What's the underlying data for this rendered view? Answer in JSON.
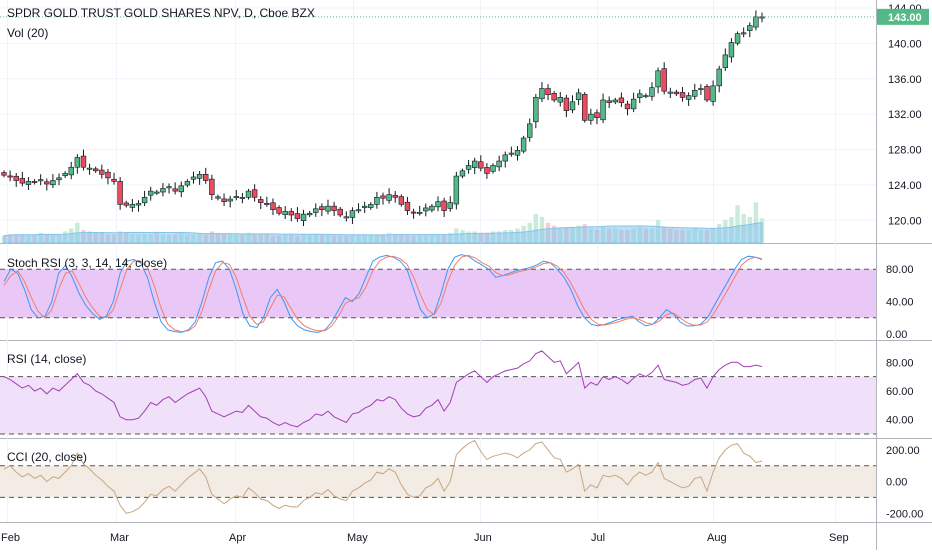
{
  "header": {
    "symbol_title": "SPDR GOLD TRUST GOLD SHARES NPV, D, Cboe BZX",
    "volume_label": "Vol (20)"
  },
  "colors": {
    "up": "#53b987",
    "down": "#eb4d5c",
    "vol_ma": "#85c4ee",
    "stoch_k": "#3e97f2",
    "stoch_d": "#f07f6b",
    "stoch_band": "#e9c7f7",
    "rsi_line": "#a03fb3",
    "rsi_band": "#f1e0f9",
    "cci_line": "#c8a57f",
    "cci_band": "#f3ece4"
  },
  "chart_data": [
    {
      "type": "candlestick",
      "title": "SPDR GOLD TRUST GOLD SHARES NPV, D, Cboe BZX",
      "ylim": [
        118,
        144
      ],
      "yticks": [
        "120.00",
        "124.00",
        "128.00",
        "132.00",
        "136.00",
        "140.00",
        "144.00"
      ],
      "last_price": "143.00",
      "x_labels": [
        "Feb",
        "Mar",
        "Apr",
        "May",
        "Jun",
        "Jul",
        "Aug",
        "Sep"
      ],
      "closes": [
        125.1,
        124.9,
        124.5,
        124.2,
        124.4,
        124.3,
        124.6,
        124.1,
        124.5,
        124.8,
        125.3,
        126.0,
        127.1,
        126.0,
        125.9,
        125.6,
        125.2,
        124.8,
        124.4,
        121.8,
        121.7,
        121.8,
        121.9,
        122.6,
        123.3,
        123.2,
        123.6,
        123.8,
        123.3,
        123.9,
        124.4,
        124.9,
        125.2,
        124.5,
        122.9,
        122.5,
        122.1,
        122.4,
        122.7,
        122.6,
        123.3,
        122.6,
        122.0,
        121.9,
        121.2,
        120.8,
        121.0,
        120.6,
        120.2,
        120.7,
        120.8,
        121.3,
        121.2,
        121.6,
        121.1,
        120.6,
        120.4,
        121.1,
        121.2,
        121.6,
        121.8,
        122.6,
        122.5,
        122.9,
        122.6,
        121.8,
        121.1,
        120.9,
        120.9,
        121.4,
        121.6,
        122.1,
        121.1,
        122.0,
        125.0,
        125.6,
        126.2,
        126.7,
        125.9,
        125.3,
        126.2,
        126.7,
        127.4,
        127.6,
        127.9,
        129.3,
        130.9,
        133.9,
        134.9,
        134.2,
        133.6,
        133.9,
        132.4,
        133.4,
        134.4,
        131.3,
        132.0,
        131.6,
        133.6,
        133.3,
        133.6,
        133.3,
        132.6,
        133.7,
        134.3,
        134.1,
        135.0,
        136.9,
        134.6,
        134.5,
        134.3,
        133.9,
        134.1,
        134.7,
        134.9,
        133.6,
        135.2,
        137.1,
        138.7,
        140.1,
        141.1,
        141.2,
        142.0,
        143.0,
        143.0
      ],
      "vol_ma_note": "",
      "volume_rel": [
        0.25,
        0.3,
        0.3,
        0.3,
        0.28,
        0.3,
        0.35,
        0.3,
        0.3,
        0.3,
        0.4,
        0.5,
        0.7,
        0.45,
        0.4,
        0.35,
        0.35,
        0.3,
        0.3,
        0.4,
        0.35,
        0.3,
        0.3,
        0.3,
        0.3,
        0.35,
        0.3,
        0.28,
        0.3,
        0.35,
        0.3,
        0.3,
        0.35,
        0.3,
        0.4,
        0.35,
        0.3,
        0.3,
        0.28,
        0.3,
        0.35,
        0.3,
        0.3,
        0.3,
        0.25,
        0.25,
        0.3,
        0.28,
        0.25,
        0.3,
        0.3,
        0.3,
        0.3,
        0.28,
        0.25,
        0.25,
        0.25,
        0.3,
        0.28,
        0.3,
        0.3,
        0.3,
        0.3,
        0.35,
        0.3,
        0.3,
        0.28,
        0.25,
        0.3,
        0.28,
        0.3,
        0.3,
        0.3,
        0.35,
        0.5,
        0.45,
        0.4,
        0.4,
        0.35,
        0.35,
        0.4,
        0.4,
        0.45,
        0.45,
        0.5,
        0.6,
        0.7,
        1.0,
        0.9,
        0.7,
        0.6,
        0.55,
        0.55,
        0.55,
        0.6,
        0.65,
        0.5,
        0.45,
        0.55,
        0.5,
        0.5,
        0.45,
        0.45,
        0.5,
        0.55,
        0.5,
        0.5,
        0.8,
        0.55,
        0.5,
        0.45,
        0.45,
        0.45,
        0.5,
        0.45,
        0.45,
        0.5,
        0.65,
        0.8,
        0.9,
        1.3,
        1.0,
        0.9,
        1.4,
        0.85
      ]
    },
    {
      "type": "line",
      "title": "Stoch RSI (3, 3, 14, 14, close)",
      "ylim": [
        0,
        100
      ],
      "yticks": [
        "0.00",
        "40.00",
        "80.00"
      ],
      "bands": [
        20,
        80
      ],
      "series": [
        {
          "values": [
            65,
            80,
            75,
            55,
            30,
            20,
            22,
            40,
            75,
            85,
            70,
            50,
            35,
            25,
            18,
            22,
            40,
            75,
            90,
            92,
            88,
            70,
            40,
            15,
            5,
            3,
            2,
            5,
            15,
            40,
            70,
            88,
            90,
            80,
            55,
            25,
            10,
            8,
            20,
            45,
            55,
            40,
            20,
            10,
            5,
            3,
            2,
            5,
            15,
            30,
            45,
            40,
            50,
            70,
            90,
            95,
            97,
            95,
            90,
            80,
            55,
            30,
            20,
            25,
            50,
            80,
            95,
            98,
            96,
            90,
            85,
            80,
            70,
            72,
            75,
            78,
            80,
            82,
            85,
            90,
            88,
            80,
            70,
            55,
            35,
            20,
            12,
            10,
            12,
            15,
            18,
            20,
            22,
            15,
            10,
            12,
            20,
            30,
            25,
            15,
            10,
            10,
            12,
            20,
            35,
            50,
            65,
            80,
            92,
            96,
            95,
            92
          ]
        },
        {
          "values": [
            60,
            72,
            78,
            65,
            45,
            28,
            20,
            30,
            55,
            75,
            78,
            62,
            45,
            32,
            22,
            20,
            30,
            55,
            80,
            90,
            90,
            82,
            60,
            32,
            12,
            5,
            3,
            4,
            10,
            28,
            55,
            78,
            88,
            86,
            70,
            45,
            22,
            12,
            15,
            32,
            48,
            46,
            32,
            18,
            10,
            6,
            4,
            4,
            10,
            22,
            38,
            42,
            45,
            58,
            78,
            90,
            95,
            96,
            93,
            86,
            70,
            48,
            30,
            24,
            38,
            65,
            85,
            95,
            97,
            94,
            88,
            84,
            76,
            72,
            73,
            76,
            78,
            80,
            83,
            87,
            88,
            84,
            76,
            63,
            47,
            30,
            18,
            12,
            11,
            13,
            15,
            18,
            20,
            18,
            14,
            12,
            16,
            24,
            26,
            20,
            14,
            11,
            11,
            15,
            26,
            40,
            55,
            70,
            85,
            92,
            95,
            93
          ]
        }
      ]
    },
    {
      "type": "line",
      "title": "RSI (14, close)",
      "ylim": [
        30,
        90
      ],
      "yticks": [
        "40.00",
        "60.00",
        "80.00"
      ],
      "bands": [
        30,
        70
      ],
      "series": [
        {
          "values": [
            70,
            68,
            65,
            62,
            64,
            60,
            62,
            58,
            62,
            60,
            64,
            68,
            72,
            66,
            64,
            60,
            58,
            55,
            52,
            42,
            40,
            40,
            41,
            46,
            52,
            50,
            54,
            56,
            52,
            55,
            58,
            60,
            62,
            56,
            46,
            44,
            42,
            44,
            46,
            45,
            50,
            46,
            42,
            41,
            38,
            36,
            38,
            36,
            35,
            38,
            40,
            44,
            43,
            46,
            42,
            40,
            38,
            44,
            45,
            48,
            50,
            54,
            53,
            56,
            54,
            48,
            44,
            42,
            43,
            48,
            50,
            54,
            46,
            52,
            66,
            69,
            72,
            74,
            70,
            66,
            70,
            72,
            74,
            75,
            76,
            79,
            81,
            86,
            88,
            84,
            80,
            81,
            72,
            76,
            80,
            62,
            66,
            64,
            70,
            68,
            70,
            68,
            65,
            69,
            72,
            70,
            73,
            78,
            68,
            67,
            66,
            64,
            65,
            68,
            69,
            62,
            70,
            75,
            78,
            80,
            80,
            77,
            77,
            78,
            77
          ]
        }
      ]
    },
    {
      "type": "line",
      "title": "CCI (20, close)",
      "ylim": [
        -230,
        250
      ],
      "yticks": [
        "-200.00",
        "0.00",
        "200.00"
      ],
      "bands": [
        -100,
        100
      ],
      "series": [
        {
          "values": [
            80,
            100,
            60,
            30,
            50,
            20,
            40,
            0,
            30,
            20,
            60,
            100,
            180,
            110,
            80,
            40,
            10,
            -30,
            -60,
            -150,
            -200,
            -190,
            -170,
            -130,
            -80,
            -90,
            -50,
            -30,
            -60,
            -20,
            20,
            50,
            80,
            30,
            -80,
            -110,
            -140,
            -110,
            -90,
            -100,
            -40,
            -70,
            -110,
            -120,
            -150,
            -170,
            -150,
            -160,
            -160,
            -120,
            -100,
            -70,
            -80,
            -50,
            -90,
            -110,
            -120,
            -60,
            -40,
            -10,
            10,
            60,
            50,
            80,
            60,
            -20,
            -80,
            -100,
            -90,
            -40,
            -20,
            20,
            -60,
            0,
            170,
            210,
            240,
            260,
            190,
            140,
            160,
            170,
            180,
            170,
            150,
            180,
            200,
            240,
            250,
            200,
            150,
            140,
            60,
            80,
            110,
            -60,
            -20,
            -40,
            40,
            30,
            40,
            20,
            -20,
            30,
            60,
            40,
            60,
            120,
            20,
            0,
            -20,
            -40,
            -30,
            20,
            30,
            -60,
            60,
            150,
            200,
            230,
            240,
            180,
            160,
            120,
            130
          ]
        }
      ]
    }
  ]
}
